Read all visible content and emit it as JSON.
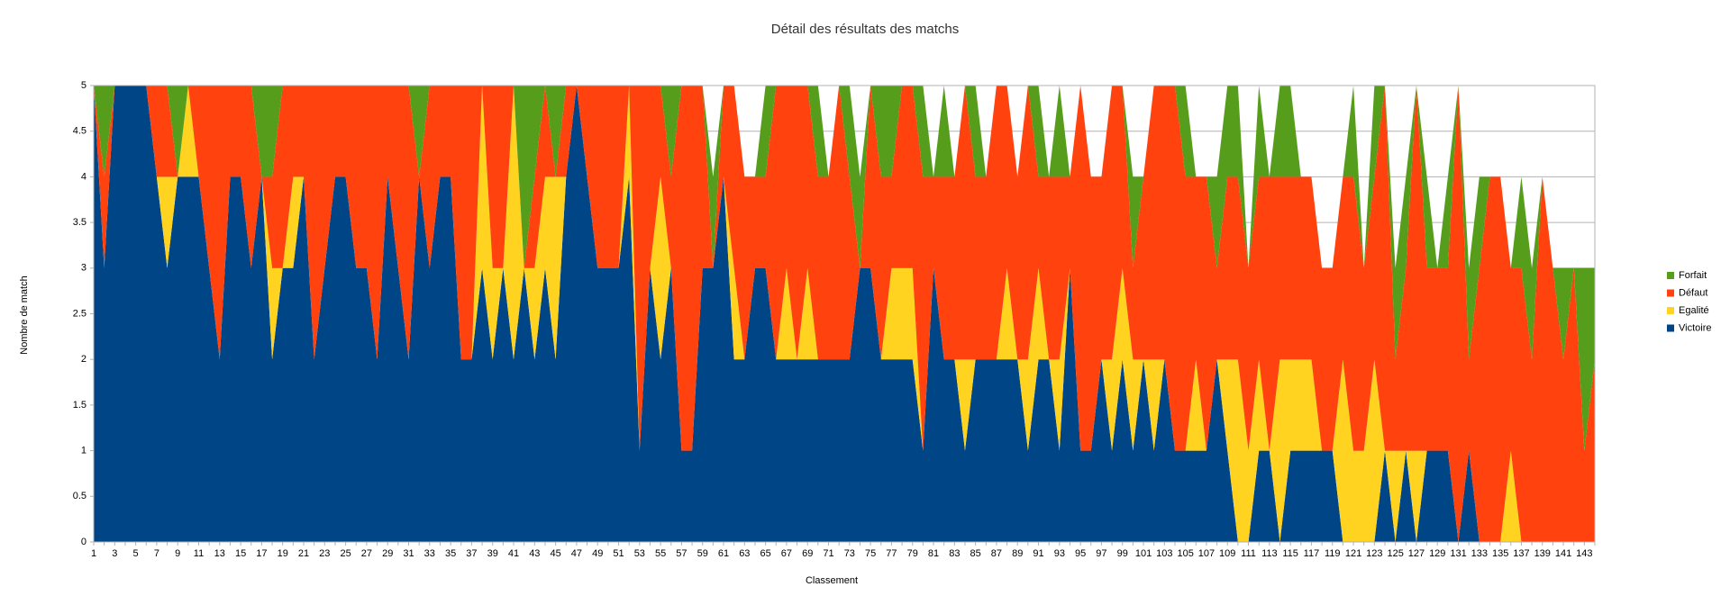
{
  "chart_data": {
    "type": "stacked_area",
    "title": "Détail des résultats des matchs",
    "x_label": "Classement",
    "y_label": "Nombre de match",
    "categories": [
      1,
      null,
      3,
      null,
      5,
      null,
      7,
      null,
      9,
      null,
      11,
      null,
      13,
      null,
      15,
      null,
      17,
      null,
      19,
      null,
      21,
      null,
      23,
      null,
      25,
      null,
      27,
      null,
      29,
      null,
      31,
      null,
      33,
      null,
      35,
      null,
      37,
      null,
      39,
      null,
      41,
      null,
      43,
      null,
      45,
      null,
      47,
      null,
      49,
      null,
      51,
      null,
      53,
      null,
      55,
      null,
      57,
      null,
      59,
      null,
      61,
      null,
      63,
      null,
      65,
      null,
      67,
      null,
      69,
      null,
      71,
      null,
      73,
      null,
      75,
      null,
      77,
      null,
      79,
      null,
      81,
      null,
      83,
      null,
      85,
      null,
      87,
      null,
      89,
      null,
      91,
      null,
      93,
      null,
      95,
      null,
      97,
      null,
      99,
      null,
      101,
      null,
      103,
      null,
      105,
      null,
      107,
      null,
      109,
      null,
      111,
      null,
      113,
      null,
      115,
      null,
      117,
      null,
      119,
      null,
      121,
      null,
      123,
      null,
      125,
      null,
      127,
      null,
      129,
      null,
      131,
      null,
      133,
      null,
      135,
      null,
      137,
      null,
      139,
      null,
      141,
      null,
      143,
      null
    ],
    "ylim": [
      0,
      5
    ],
    "yticks": [
      0,
      0.5,
      1,
      1.5,
      2,
      2.5,
      3,
      3.5,
      4,
      4.5,
      5
    ],
    "grid": true,
    "legend": "right",
    "series": [
      {
        "name": "Victoire",
        "color": "#004586",
        "values": [
          5,
          3,
          5,
          5,
          5,
          5,
          4,
          3,
          4,
          4,
          4,
          3,
          2,
          4,
          4,
          3,
          4,
          2,
          3,
          3,
          4,
          2,
          3,
          4,
          4,
          3,
          3,
          2,
          4,
          3,
          2,
          4,
          3,
          4,
          4,
          2,
          2,
          3,
          2,
          3,
          2,
          3,
          2,
          3,
          2,
          4,
          5,
          4,
          3,
          3,
          3,
          4,
          1,
          3,
          2,
          3,
          1,
          1,
          3,
          3,
          4,
          2,
          2,
          3,
          3,
          2,
          2,
          2,
          2,
          2,
          2,
          2,
          2,
          3,
          3,
          2,
          2,
          2,
          2,
          1,
          3,
          2,
          2,
          1,
          2,
          2,
          2,
          2,
          2,
          1,
          2,
          2,
          1,
          3,
          1,
          1,
          2,
          1,
          2,
          1,
          2,
          1,
          2,
          1,
          1,
          1,
          1,
          2,
          1,
          0,
          0,
          1,
          1,
          0,
          1,
          1,
          1,
          1,
          1,
          0,
          0,
          0,
          0,
          1,
          0,
          1,
          0,
          1,
          1,
          1,
          0,
          1,
          0,
          0,
          0,
          0,
          0,
          0,
          0,
          0,
          0,
          0,
          0,
          0
        ]
      },
      {
        "name": "Egalité",
        "color": "#ffd320",
        "values": [
          0,
          0,
          0,
          0,
          0,
          0,
          0,
          1,
          0,
          1,
          0,
          0,
          0,
          0,
          0,
          0,
          0,
          1,
          0,
          1,
          0,
          0,
          0,
          0,
          0,
          0,
          0,
          0,
          0,
          0,
          0,
          0,
          0,
          0,
          0,
          0,
          0,
          2,
          1,
          0,
          3,
          0,
          1,
          1,
          2,
          0,
          0,
          0,
          0,
          0,
          0,
          1,
          0,
          0,
          2,
          0,
          0,
          0,
          0,
          0,
          0,
          1,
          0,
          0,
          0,
          0,
          1,
          0,
          1,
          0,
          0,
          0,
          0,
          0,
          0,
          0,
          1,
          1,
          1,
          0,
          0,
          0,
          0,
          1,
          0,
          0,
          0,
          1,
          0,
          1,
          1,
          0,
          1,
          0,
          0,
          0,
          0,
          1,
          1,
          1,
          0,
          1,
          0,
          0,
          0,
          1,
          0,
          0,
          1,
          2,
          1,
          1,
          0,
          2,
          1,
          1,
          1,
          0,
          0,
          2,
          1,
          1,
          2,
          0,
          1,
          0,
          1,
          0,
          0,
          0,
          0,
          0,
          0,
          0,
          0,
          1,
          0,
          0,
          0,
          0,
          0,
          0,
          0,
          0
        ]
      },
      {
        "name": "Défaut",
        "color": "#ff420e",
        "values": [
          0,
          1,
          0,
          0,
          0,
          0,
          1,
          1,
          0,
          0,
          1,
          2,
          3,
          1,
          1,
          2,
          0,
          1,
          2,
          1,
          1,
          3,
          2,
          1,
          1,
          2,
          2,
          3,
          1,
          2,
          3,
          0,
          2,
          1,
          1,
          3,
          3,
          0,
          2,
          2,
          0,
          0,
          1,
          1,
          0,
          1,
          0,
          1,
          2,
          2,
          2,
          0,
          4,
          2,
          1,
          1,
          4,
          4,
          2,
          0,
          1,
          2,
          2,
          1,
          1,
          3,
          2,
          3,
          2,
          2,
          2,
          3,
          2,
          0,
          2,
          2,
          1,
          2,
          2,
          3,
          1,
          2,
          2,
          3,
          2,
          2,
          3,
          2,
          2,
          3,
          1,
          2,
          2,
          1,
          4,
          3,
          2,
          3,
          2,
          1,
          2,
          3,
          3,
          4,
          3,
          2,
          3,
          1,
          2,
          2,
          2,
          2,
          3,
          2,
          2,
          2,
          2,
          2,
          2,
          2,
          3,
          2,
          2,
          4,
          1,
          2,
          4,
          2,
          2,
          2,
          5,
          1,
          3,
          4,
          4,
          2,
          3,
          2,
          4,
          3,
          2,
          3,
          1,
          2
        ]
      },
      {
        "name": "Forfait",
        "color": "#579d1c",
        "values": [
          0,
          1,
          0,
          0,
          0,
          0,
          0,
          0,
          1,
          0,
          0,
          0,
          0,
          0,
          0,
          0,
          1,
          1,
          0,
          0,
          0,
          0,
          0,
          0,
          0,
          0,
          0,
          0,
          0,
          0,
          0,
          1,
          0,
          0,
          0,
          0,
          0,
          0,
          0,
          0,
          0,
          2,
          1,
          0,
          1,
          0,
          0,
          0,
          0,
          0,
          0,
          0,
          0,
          0,
          0,
          1,
          0,
          0,
          0,
          1,
          0,
          0,
          0,
          0,
          1,
          0,
          0,
          0,
          0,
          1,
          0,
          0,
          1,
          1,
          0,
          1,
          1,
          0,
          0,
          1,
          0,
          1,
          0,
          0,
          1,
          0,
          0,
          0,
          0,
          0,
          1,
          0,
          1,
          0,
          0,
          0,
          0,
          0,
          0,
          1,
          0,
          0,
          0,
          0,
          1,
          0,
          0,
          1,
          1,
          1,
          0,
          1,
          0,
          1,
          1,
          0,
          0,
          0,
          0,
          0,
          1,
          0,
          1,
          0,
          1,
          1,
          0,
          1,
          0,
          1,
          0,
          1,
          1,
          0,
          0,
          0,
          1,
          1,
          0,
          0,
          1,
          0,
          2,
          1
        ]
      }
    ]
  }
}
